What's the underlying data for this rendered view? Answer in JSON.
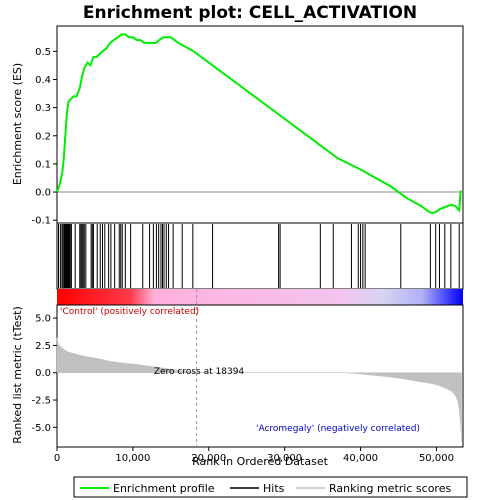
{
  "chart_data": {
    "type": "line",
    "title": "Enrichment plot: CELL_ACTIVATION",
    "xlabel": "Rank in Ordered Dataset",
    "xlim": [
      0,
      53500
    ],
    "x_ticks": [
      0,
      10000,
      20000,
      30000,
      40000,
      50000
    ],
    "x_tick_labels": [
      "0",
      "10,000",
      "20,000",
      "30,000",
      "40,000",
      "50,000"
    ],
    "panels": {
      "enrichment": {
        "ylabel": "Enrichment score (ES)",
        "ylim": [
          -0.11,
          0.59
        ],
        "y_ticks": [
          -0.1,
          0.0,
          0.1,
          0.2,
          0.3,
          0.4,
          0.5
        ],
        "y_tick_labels": [
          "-0.1",
          "0.0",
          "0.1",
          "0.2",
          "0.3",
          "0.4",
          "0.5"
        ],
        "series": [
          {
            "name": "Enrichment profile",
            "color": "#00ee00",
            "x": [
              0,
              400,
              700,
              900,
              1100,
              1300,
              1500,
              1800,
              2200,
              2600,
              3000,
              3300,
              3600,
              4000,
              4400,
              4800,
              5200,
              5600,
              6000,
              6500,
              7000,
              7500,
              8000,
              8500,
              9000,
              9500,
              10000,
              10500,
              11000,
              11500,
              12000,
              12500,
              13000,
              13500,
              14000,
              14500,
              15000,
              16000,
              18000,
              20000,
              22000,
              25000,
              28000,
              31000,
              34000,
              37000,
              40000,
              42000,
              44000,
              46000,
              48000,
              49000,
              49500,
              50000,
              50500,
              51000,
              51500,
              52000,
              52500,
              53000,
              53200
            ],
            "values": [
              0.0,
              0.03,
              0.07,
              0.12,
              0.2,
              0.28,
              0.32,
              0.33,
              0.34,
              0.34,
              0.37,
              0.41,
              0.44,
              0.46,
              0.45,
              0.48,
              0.48,
              0.49,
              0.5,
              0.51,
              0.53,
              0.54,
              0.55,
              0.56,
              0.56,
              0.55,
              0.55,
              0.54,
              0.54,
              0.53,
              0.53,
              0.53,
              0.53,
              0.54,
              0.55,
              0.55,
              0.55,
              0.53,
              0.5,
              0.46,
              0.42,
              0.36,
              0.3,
              0.24,
              0.18,
              0.12,
              0.08,
              0.05,
              0.02,
              -0.02,
              -0.05,
              -0.07,
              -0.075,
              -0.07,
              -0.06,
              -0.055,
              -0.05,
              -0.045,
              -0.05,
              -0.065,
              0.005
            ]
          }
        ]
      },
      "hits": {
        "color": "#000000",
        "positions": [
          200,
          450,
          650,
          800,
          950,
          1050,
          1150,
          1250,
          1350,
          1450,
          1550,
          1650,
          1750,
          1900,
          2400,
          3000,
          3150,
          3300,
          3450,
          3600,
          3800,
          4500,
          4650,
          4800,
          5300,
          5700,
          6000,
          6300,
          6800,
          7100,
          7600,
          8200,
          8400,
          8600,
          9000,
          9700,
          11300,
          12200,
          12700,
          13100,
          13400,
          13700,
          13900,
          14100,
          14400,
          14700,
          15300,
          16500,
          17900,
          20500,
          29200,
          29400,
          34700,
          36400,
          38800,
          39700,
          40000,
          40300,
          40600,
          45300,
          49200,
          49900,
          50400,
          51100,
          51900,
          53000
        ]
      },
      "ranking": {
        "ylabel": "Ranked list metric (tTest)",
        "ylim": [
          -6.8,
          6.2
        ],
        "y_ticks": [
          -5.0,
          -2.5,
          0.0,
          2.5,
          5.0
        ],
        "y_tick_labels": [
          "-5.0",
          "-2.5",
          "0.0",
          "2.5",
          "5.0"
        ],
        "series": [
          {
            "name": "Ranking metric scores",
            "color": "#c0c0c0",
            "x": [
              0,
              100,
              300,
              600,
              1000,
              1500,
              2000,
              3000,
              4000,
              5000,
              6000,
              7000,
              8000,
              9000,
              10000,
              11000,
              12000,
              13000,
              14000,
              15000,
              16000,
              17000,
              18394,
              20000,
              25000,
              30000,
              35000,
              38000,
              40000,
              42000,
              44000,
              46000,
              48000,
              49000,
              50000,
              51000,
              52000,
              52500,
              52800,
              53000,
              53200,
              53300
            ],
            "values": [
              3.2,
              2.8,
              2.5,
              2.3,
              2.1,
              1.9,
              1.8,
              1.6,
              1.45,
              1.35,
              1.2,
              1.05,
              0.95,
              0.85,
              0.8,
              0.72,
              0.62,
              0.52,
              0.42,
              0.32,
              0.22,
              0.12,
              0.0,
              0.0,
              0.0,
              0.0,
              0.0,
              0.0,
              -0.12,
              -0.25,
              -0.4,
              -0.6,
              -0.85,
              -0.95,
              -1.1,
              -1.35,
              -1.7,
              -2.1,
              -2.6,
              -3.3,
              -4.8,
              -6.3
            ]
          }
        ],
        "annotations": {
          "zero_cross": "Zero cross at 18394",
          "zero_cross_x": 18394,
          "positive_label": "'Control' (positively correlated)",
          "negative_label": "'Acromegaly' (negatively correlated)"
        }
      }
    },
    "legend": {
      "placement": "bottom",
      "items": [
        {
          "label": "Enrichment profile",
          "color": "#00ee00",
          "kind": "line"
        },
        {
          "label": "Hits",
          "color": "#000000",
          "kind": "line"
        },
        {
          "label": "Ranking metric scores",
          "color": "#c0c0c0",
          "kind": "line"
        }
      ]
    },
    "colors": {
      "positive_label": "#cc0000",
      "negative_label": "#0000cc",
      "gradient_red": "#ff0000",
      "gradient_pink": "#ffb0dc",
      "gradient_lavender": "#d8d4f4",
      "gradient_blue": "#0000ff"
    }
  }
}
